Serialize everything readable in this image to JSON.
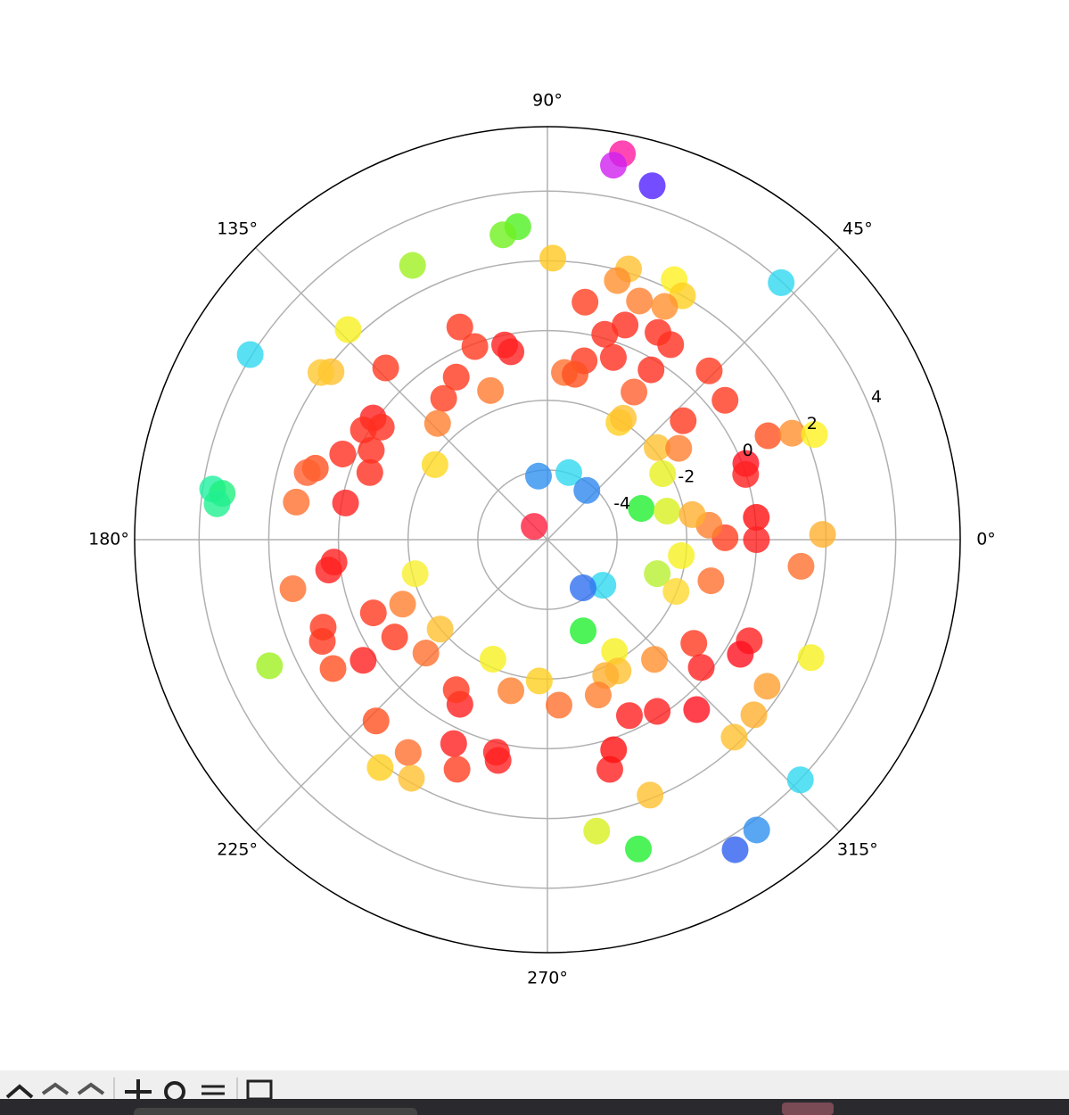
{
  "chart_data": {
    "type": "polar-scatter",
    "rlim": [
      -6,
      5.85
    ],
    "rticks": [
      -4,
      -2,
      0,
      2,
      4
    ],
    "rlabel_position": 22.5,
    "thetaticks": [
      {
        "value": 0,
        "label": "0°"
      },
      {
        "value": 45,
        "label": "45°"
      },
      {
        "value": 90,
        "label": "90°"
      },
      {
        "value": 135,
        "label": "135°"
      },
      {
        "value": 180,
        "label": "180°"
      },
      {
        "value": 225,
        "label": "225°"
      },
      {
        "value": 270,
        "label": "270°"
      },
      {
        "value": 315,
        "label": "315°"
      }
    ],
    "grid": true,
    "marker_alpha": 0.8,
    "series": [
      {
        "theta": [
          79.0,
          80.0,
          73.5,
          47.7,
          95.4,
          98.3,
          116.2,
          88.9,
          148.1,
          171.4,
          171.9,
          173.8,
          133.5,
          142.2,
          143.6,
          133.3,
          112.4,
          110.6,
          102.4,
          101.0,
          119.3,
          126.3,
          110.9,
          133.4,
          145.1,
          145.9,
          149.2,
          157.3,
          153.1,
          159.3,
          162.9,
          164.4,
          171.5,
          169.7,
          146.3,
          98.0,
          72.3,
          51.3,
          135.0,
          18.4,
          13.4,
          29.8,
          40.0,
          34.8,
          41.2,
          38.1,
          46.2,
          21.0,
          18.2,
          25.2,
          23.5,
          21.5,
          6.1,
          0.0,
          1.1,
          354.0,
          0.6,
          5.1,
          9.8,
          353.2,
          342.8,
          338.1,
          345.9,
          320.6,
          306.5,
          291.4,
          301.0,
          298.3,
          293.2,
          311.8,
          324.7,
          320.3,
          333.4,
          329.3,
          335.9,
          326.3,
          319.7,
          313.4,
          316.5,
          305.8,
          301.2,
          286.4,
          279.6,
          291.9,
          285.2,
          287.5,
          302.6,
          311.3,
          295.0,
          274.0,
          266.7,
          256.4,
          245.5,
          242.0,
          238.7,
          223.0,
          219.8,
          194.4,
          204.0,
          212.5,
          202.8,
          213.2,
          186.0,
          187.9,
          190.9,
          201.3,
          204.3,
          211.0,
          204.4,
          226.6,
          236.8,
          233.7,
          240.3,
          245.3,
          248.5,
          256.5,
          257.4,
          73.3,
          74.9,
          64.0,
          61.0,
          68.9,
          63.3,
          81.0,
          74.4,
          70.1,
          61.9,
          57.7,
          70.1,
          78.4,
          58.6,
          84.2,
          80.5,
          59.6,
          58.6,
          58.0,
          288.1
        ],
        "r": [
          5.28,
          4.91,
          4.59,
          3.97,
          3.02,
          2.84,
          2.77,
          2.08,
          4.05,
          3.72,
          3.43,
          3.54,
          2.31,
          1.86,
          2.08,
          0.77,
          0.6,
          -0.08,
          -0.28,
          -0.51,
          -0.65,
          -0.97,
          -1.42,
          -1.41,
          0.1,
          -0.24,
          0.15,
          0.37,
          -0.33,
          -0.55,
          0.97,
          1.16,
          1.29,
          -0.11,
          -2.12,
          -4.16,
          -3.98,
          -4.19,
          -5.46,
          -3.16,
          -2.47,
          -2.19,
          -1.89,
          -1.41,
          -0.82,
          0.48,
          0.71,
          0.1,
          -0.01,
          1.0,
          1.66,
          2.24,
          0.03,
          0.0,
          1.9,
          1.32,
          -0.9,
          -1.34,
          -1.78,
          -2.13,
          -2.7,
          -2.02,
          -1.16,
          -3.94,
          -4.28,
          -3.19,
          -2.26,
          -1.72,
          -1.76,
          -1.39,
          -0.85,
          -0.26,
          0.48,
          0.44,
          2.29,
          1.58,
          1.77,
          1.8,
          4.01,
          4.27,
          4.4,
          3.25,
          2.48,
          1.9,
          0.83,
          0.32,
          -0.15,
          0.49,
          -0.43,
          -1.24,
          -1.94,
          -1.54,
          -2.23,
          -0.65,
          -0.96,
          -1.23,
          -1.99,
          -2.08,
          -1.45,
          -0.8,
          -0.58,
          0.32,
          0.16,
          0.34,
          1.44,
          0.91,
          1.09,
          1.18,
          2.76,
          1.16,
          1.3,
          2.11,
          1.88,
          0.44,
          1.08,
          0.27,
          0.49,
          2.11,
          1.7,
          2.3,
          2.0,
          1.34,
          1.49,
          0.9,
          0.12,
          0.55,
          0.74,
          0.62,
          -0.44,
          -0.76,
          -0.29,
          -1.18,
          -1.19,
          -1.09,
          -2.06,
          -1.89,
          -1.31
        ],
        "colors": [
          "#ff1aa0",
          "#d020f0",
          "#5020ff",
          "#30d8f0",
          "#50f020",
          "#70f020",
          "#a0f020",
          "#ffc820",
          "#30d8f0",
          "#20f0a0",
          "#20f080",
          "#20f090",
          "#f8f020",
          "#ffc030",
          "#ffc830",
          "#ff3a20",
          "#ff3a20",
          "#ff3a20",
          "#ff2020",
          "#ff2020",
          "#ff3a20",
          "#ff4020",
          "#ff7a30",
          "#ff8030",
          "#ff2020",
          "#ff3020",
          "#ff3020",
          "#ff3020",
          "#ff3020",
          "#ff3020",
          "#ff5020",
          "#ff6030",
          "#ff7030",
          "#ff2020",
          "#ffd820",
          "#3090f0",
          "#30d8f0",
          "#3088f0",
          "#ff2040",
          "#20f030",
          "#d8f020",
          "#e8f020",
          "#ffc030",
          "#ff8030",
          "#ff3a20",
          "#ff3a20",
          "#ff3a20",
          "#ff1020",
          "#ff2020",
          "#ff5020",
          "#ff9030",
          "#fff020",
          "#ff1010",
          "#ff2020",
          "#ffb030",
          "#ff7030",
          "#ff4020",
          "#ff8030",
          "#ffb030",
          "#f8f020",
          "#b8f030",
          "#ffd830",
          "#ff7030",
          "#30d8f0",
          "#3070f0",
          "#20f030",
          "#f8f020",
          "#ffc030",
          "#ffb030",
          "#ff9030",
          "#ff3a20",
          "#ff2020",
          "#ff2020",
          "#ff1020",
          "#f8f020",
          "#ffa030",
          "#ffb030",
          "#ffc030",
          "#30d8f0",
          "#3090f0",
          "#3060f0",
          "#20f030",
          "#d8f020",
          "#ffc030",
          "#ff2020",
          "#ff1010",
          "#ff2020",
          "#ff1020",
          "#ff2020",
          "#ff7030",
          "#ffd020",
          "#ff8030",
          "#f8f020",
          "#ff2020",
          "#ff3a20",
          "#ff7030",
          "#ffc030",
          "#f8f030",
          "#ff8030",
          "#ff3a20",
          "#ff3a20",
          "#ff2020",
          "#ff2020",
          "#ff2020",
          "#ff7030",
          "#ff3a20",
          "#ff3a20",
          "#ff5020",
          "#a0f020",
          "#ff5020",
          "#ff7030",
          "#ffd020",
          "#ffc030",
          "#ff2020",
          "#ff4020",
          "#ff2020",
          "#ff2020",
          "#ffc030",
          "#ff9030",
          "#fff020",
          "#ffd020",
          "#ff8030",
          "#ff9030",
          "#ff4020",
          "#ff3020",
          "#ff3020",
          "#ff3020",
          "#ff3020",
          "#ff3020",
          "#ff3a20",
          "#ff3020",
          "#ff7030",
          "#ff5020",
          "#ff6030",
          "#ffd020",
          "#ffc030",
          "#ff8030"
        ]
      }
    ]
  }
}
